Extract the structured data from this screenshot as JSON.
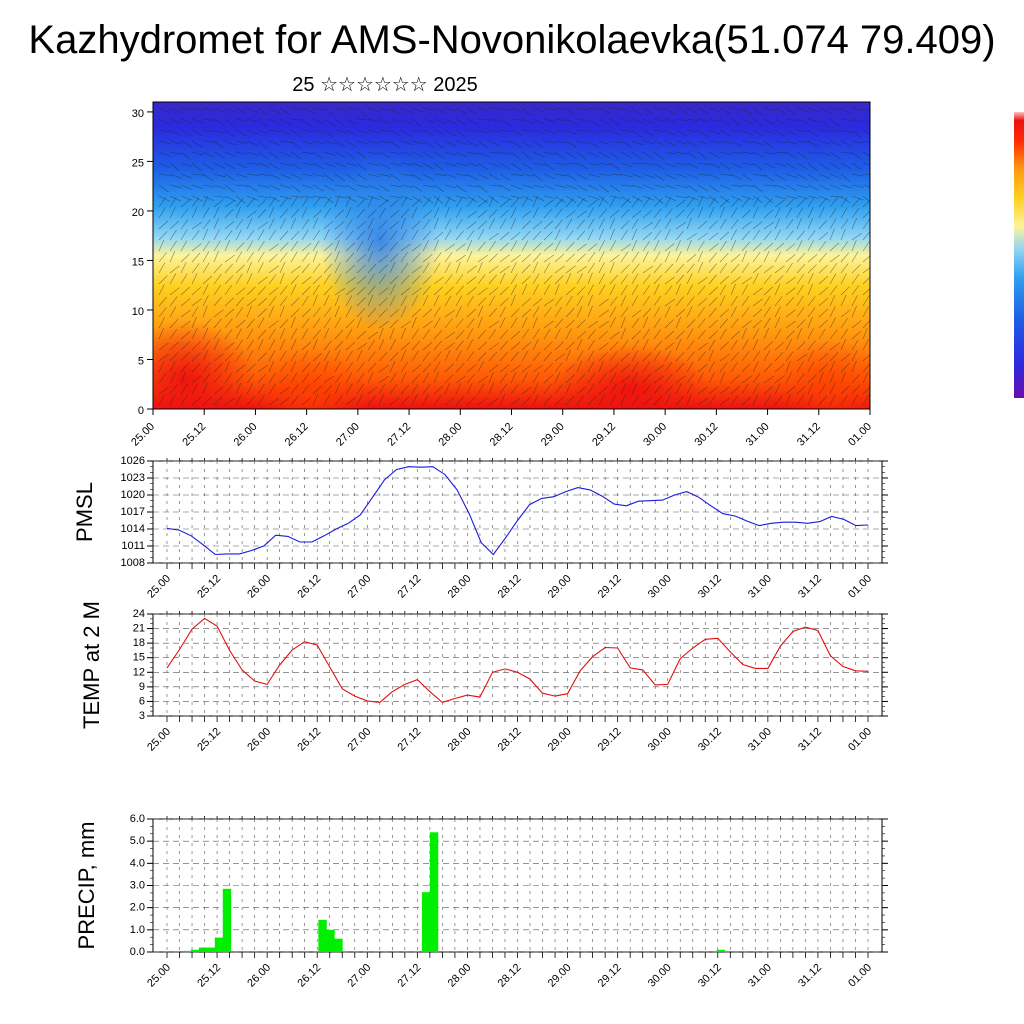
{
  "title": "Kazhydromet for AMS-Novonikolaevka(51.074 79.409)",
  "subtitle": "25 ☆☆☆☆☆☆ 2025",
  "colors": {
    "pmsl_line": "#1a1adc",
    "temp_line": "#e01010",
    "precip_bar": "#00ee00",
    "grid": "#555555"
  },
  "chart_data": [
    {
      "type": "heatmap",
      "name": "cross-section",
      "ylim": [
        0,
        31
      ],
      "y_ticks": [
        0,
        5,
        10,
        15,
        20,
        25,
        30
      ],
      "x_ticks": [
        "25.00",
        "25.12",
        "26.00",
        "26.12",
        "27.00",
        "27.12",
        "28.00",
        "28.12",
        "29.00",
        "29.12",
        "30.00",
        "30.12",
        "31.00",
        "31.12",
        "01.00"
      ],
      "colormap": [
        "#6a0dad",
        "#2a2adf",
        "#1e5fe6",
        "#2fa0f0",
        "#8fd6f5",
        "#fdf39a",
        "#ffd020",
        "#ff9a10",
        "#ff5a05",
        "#ee1010"
      ],
      "colorbar": true
    },
    {
      "type": "line",
      "ylabel": "PMSL",
      "ylim": [
        1008,
        1026
      ],
      "y_ticks": [
        1008,
        1011,
        1014,
        1017,
        1020,
        1023,
        1026
      ],
      "x_ticks": [
        "25.00",
        "25.12",
        "26.00",
        "26.12",
        "27.00",
        "27.12",
        "28.00",
        "28.12",
        "29.00",
        "29.12",
        "30.00",
        "30.12",
        "31.00",
        "31.12",
        "01.00"
      ],
      "values": [
        1014.1,
        1013.8,
        1012.8,
        1011.2,
        1009.5,
        1009.6,
        1009.6,
        1010.2,
        1011.0,
        1012.9,
        1012.7,
        1011.7,
        1011.7,
        1012.8,
        1014.0,
        1015.0,
        1016.5,
        1019.6,
        1022.7,
        1024.5,
        1025.0,
        1024.9,
        1025.0,
        1023.6,
        1020.9,
        1016.7,
        1011.6,
        1009.5,
        1012.4,
        1015.5,
        1018.3,
        1019.4,
        1019.7,
        1020.6,
        1021.3,
        1020.9,
        1019.8,
        1018.4,
        1018.1,
        1018.9,
        1019.0,
        1019.1,
        1020.0,
        1020.6,
        1019.6,
        1018.1,
        1016.7,
        1016.3,
        1015.4,
        1014.6,
        1015.0,
        1015.2,
        1015.2,
        1015.0,
        1015.3,
        1016.2,
        1015.7,
        1014.6,
        1014.7
      ],
      "series_name": ""
    },
    {
      "type": "line",
      "ylabel": "TEMP at 2 M",
      "ylim": [
        3,
        24
      ],
      "y_ticks": [
        3,
        6,
        9,
        12,
        15,
        18,
        21,
        24
      ],
      "x_ticks": [
        "25.00",
        "25.12",
        "26.00",
        "26.12",
        "27.00",
        "27.12",
        "28.00",
        "28.12",
        "29.00",
        "29.12",
        "30.00",
        "30.12",
        "31.00",
        "31.12",
        "01.00"
      ],
      "values": [
        12.9,
        16.7,
        20.9,
        23.1,
        21.5,
        16.5,
        12.5,
        10.2,
        9.5,
        13.5,
        16.6,
        18.3,
        17.6,
        13.1,
        8.6,
        7.1,
        6.1,
        5.8,
        8.0,
        9.5,
        10.5,
        8.0,
        5.8,
        6.6,
        7.3,
        6.9,
        12.0,
        12.7,
        12.0,
        10.6,
        7.7,
        7.1,
        7.6,
        12.3,
        15.2,
        17.1,
        17.0,
        12.9,
        12.5,
        9.4,
        9.5,
        14.8,
        17.0,
        18.8,
        19.0,
        16.2,
        13.6,
        12.8,
        12.8,
        17.4,
        20.4,
        21.3,
        20.6,
        15.4,
        13.2,
        12.3,
        12.2
      ]
    },
    {
      "type": "bar",
      "ylabel": "PRECIP, mm",
      "ylim": [
        0,
        6
      ],
      "y_ticks": [
        "0.0",
        "1.0",
        "2.0",
        "3.0",
        "4.0",
        "5.0",
        "6.0"
      ],
      "x_ticks": [
        "25.00",
        "25.12",
        "26.00",
        "26.12",
        "27.00",
        "27.12",
        "28.00",
        "28.12",
        "29.00",
        "29.12",
        "30.00",
        "30.12",
        "31.00",
        "31.12",
        "01.00"
      ],
      "values": [
        0,
        0,
        0.05,
        0.1,
        0.2,
        0.2,
        0.65,
        2.85,
        0,
        0,
        0,
        0,
        0,
        0,
        0,
        0,
        0,
        0,
        0,
        1.45,
        1.0,
        0.6,
        0,
        0,
        0,
        0,
        0,
        0,
        0,
        0,
        0,
        0,
        2.7,
        5.4,
        0,
        0,
        0,
        0,
        0,
        0,
        0,
        0,
        0,
        0,
        0,
        0,
        0,
        0,
        0,
        0,
        0,
        0,
        0,
        0,
        0,
        0,
        0,
        0,
        0,
        0,
        0,
        0,
        0,
        0,
        0,
        0,
        0,
        0,
        0,
        0.1,
        0,
        0,
        0,
        0,
        0,
        0,
        0,
        0,
        0,
        0,
        0,
        0,
        0,
        0,
        0,
        0,
        0,
        0
      ]
    }
  ]
}
